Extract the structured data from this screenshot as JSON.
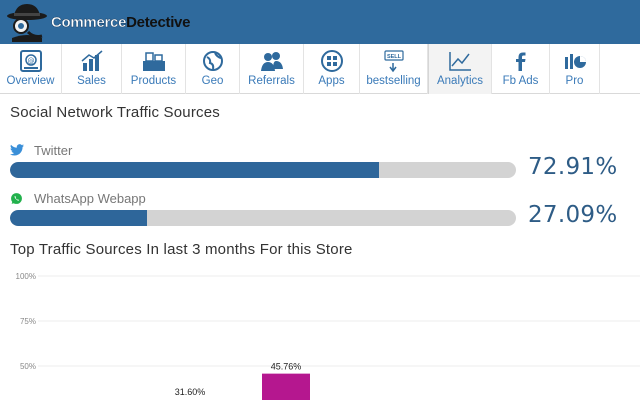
{
  "app": {
    "name_part1": "Commerce",
    "name_part2": "Detective",
    "brand_color": "#2f6a9d"
  },
  "tabs": [
    {
      "label": "Overview",
      "icon": "overview-icon"
    },
    {
      "label": "Sales",
      "icon": "sales-chart-icon"
    },
    {
      "label": "Products",
      "icon": "products-icon"
    },
    {
      "label": "Geo",
      "icon": "globe-icon"
    },
    {
      "label": "Referrals",
      "icon": "referrals-icon"
    },
    {
      "label": "Apps",
      "icon": "apps-icon"
    },
    {
      "label": "bestselling",
      "icon": "sell-tag-icon"
    },
    {
      "label": "Analytics",
      "icon": "analytics-icon",
      "active": true
    },
    {
      "label": "Fb Ads",
      "icon": "facebook-icon"
    },
    {
      "label": "Pro",
      "icon": "pro-icon"
    }
  ],
  "social": {
    "title": "Social Network Traffic Sources",
    "sources": [
      {
        "name": "Twitter",
        "icon": "twitter-icon",
        "percent_text": "72.91%",
        "percent": 72.91
      },
      {
        "name": "WhatsApp Webapp",
        "icon": "whatsapp-icon",
        "percent_text": "27.09%",
        "percent": 27.09
      }
    ]
  },
  "top_sources": {
    "title": "Top Traffic Sources In last 3 months For this Store"
  },
  "chart_data": {
    "type": "bar",
    "title": "Top Traffic Sources In last 3 months For this Store",
    "ytick_labels": [
      "100%",
      "75%",
      "50%"
    ],
    "ylim": [
      0,
      100
    ],
    "bars": [
      {
        "value": 31.6,
        "label": "31.60%",
        "color": ""
      },
      {
        "value": 45.76,
        "label": "45.76%",
        "color": "#b5178f"
      }
    ]
  }
}
